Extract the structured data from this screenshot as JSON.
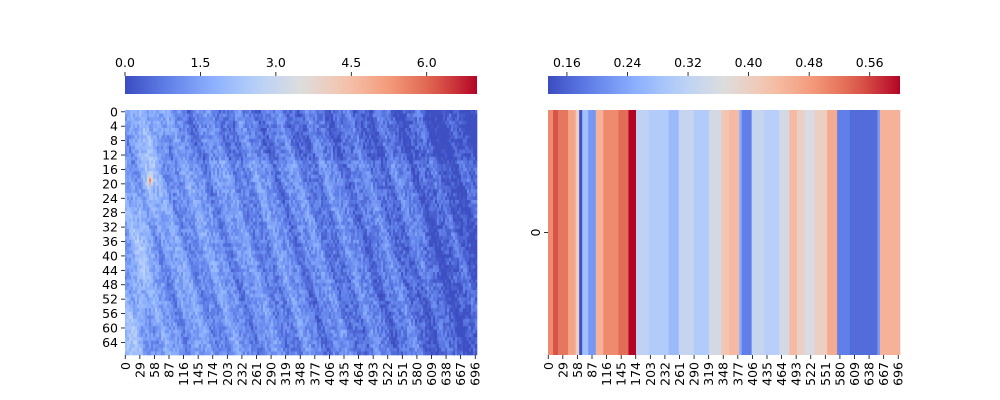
{
  "chart_data": [
    {
      "type": "heatmap",
      "title": "",
      "xlabel": "",
      "ylabel": "",
      "rows": 68,
      "cols": 700,
      "x_tick_labels": [
        "0",
        "29",
        "58",
        "87",
        "116",
        "145",
        "174",
        "203",
        "232",
        "261",
        "290",
        "319",
        "348",
        "377",
        "406",
        "435",
        "464",
        "493",
        "522",
        "551",
        "580",
        "609",
        "638",
        "667",
        "696"
      ],
      "y_tick_labels": [
        "0",
        "4",
        "8",
        "12",
        "16",
        "20",
        "24",
        "28",
        "32",
        "36",
        "40",
        "44",
        "48",
        "52",
        "56",
        "60",
        "64"
      ],
      "colormap": "coolwarm",
      "colorbar": {
        "position": "top",
        "range": [
          0.0,
          7.0
        ],
        "tick_values": [
          0.0,
          1.5,
          3.0,
          4.5,
          6.0
        ],
        "tick_labels": [
          "0.0",
          "1.5",
          "3.0",
          "4.5",
          "6.0"
        ]
      },
      "value_range_description": "mostly low values 0.5-2.5, one hot spot near row 19, col 48 about 5.5"
    },
    {
      "type": "heatmap",
      "title": "",
      "xlabel": "",
      "ylabel": "",
      "rows": 1,
      "cols": 700,
      "x_tick_labels": [
        "0",
        "29",
        "58",
        "87",
        "116",
        "145",
        "174",
        "203",
        "232",
        "261",
        "290",
        "319",
        "348",
        "377",
        "406",
        "435",
        "464",
        "493",
        "522",
        "551",
        "580",
        "609",
        "638",
        "667",
        "696"
      ],
      "y_tick_labels": [
        "0"
      ],
      "colormap": "coolwarm",
      "colorbar": {
        "position": "top",
        "range": [
          0.135,
          0.6
        ],
        "tick_values": [
          0.16,
          0.24,
          0.32,
          0.4,
          0.48,
          0.56
        ],
        "tick_labels": [
          "0.16",
          "0.24",
          "0.32",
          "0.40",
          "0.48",
          "0.56"
        ]
      },
      "segments": [
        {
          "start": 0,
          "end": 10,
          "value": 0.5
        },
        {
          "start": 10,
          "end": 20,
          "value": 0.55
        },
        {
          "start": 20,
          "end": 40,
          "value": 0.52
        },
        {
          "start": 40,
          "end": 55,
          "value": 0.47
        },
        {
          "start": 55,
          "end": 62,
          "value": 0.4
        },
        {
          "start": 62,
          "end": 68,
          "value": 0.14
        },
        {
          "start": 68,
          "end": 80,
          "value": 0.28
        },
        {
          "start": 80,
          "end": 95,
          "value": 0.22
        },
        {
          "start": 95,
          "end": 110,
          "value": 0.45
        },
        {
          "start": 110,
          "end": 140,
          "value": 0.5
        },
        {
          "start": 140,
          "end": 160,
          "value": 0.53
        },
        {
          "start": 160,
          "end": 175,
          "value": 0.6
        },
        {
          "start": 175,
          "end": 200,
          "value": 0.32
        },
        {
          "start": 200,
          "end": 240,
          "value": 0.3
        },
        {
          "start": 240,
          "end": 260,
          "value": 0.27
        },
        {
          "start": 260,
          "end": 290,
          "value": 0.33
        },
        {
          "start": 290,
          "end": 320,
          "value": 0.3
        },
        {
          "start": 320,
          "end": 345,
          "value": 0.35
        },
        {
          "start": 345,
          "end": 360,
          "value": 0.42
        },
        {
          "start": 360,
          "end": 380,
          "value": 0.44
        },
        {
          "start": 380,
          "end": 385,
          "value": 0.25
        },
        {
          "start": 385,
          "end": 405,
          "value": 0.19
        },
        {
          "start": 405,
          "end": 430,
          "value": 0.33
        },
        {
          "start": 430,
          "end": 460,
          "value": 0.31
        },
        {
          "start": 460,
          "end": 480,
          "value": 0.35
        },
        {
          "start": 480,
          "end": 495,
          "value": 0.44
        },
        {
          "start": 495,
          "end": 510,
          "value": 0.4
        },
        {
          "start": 510,
          "end": 530,
          "value": 0.36
        },
        {
          "start": 530,
          "end": 555,
          "value": 0.4
        },
        {
          "start": 555,
          "end": 575,
          "value": 0.46
        },
        {
          "start": 575,
          "end": 600,
          "value": 0.19
        },
        {
          "start": 600,
          "end": 655,
          "value": 0.17
        },
        {
          "start": 655,
          "end": 660,
          "value": 0.22
        },
        {
          "start": 660,
          "end": 700,
          "value": 0.45
        }
      ]
    }
  ]
}
